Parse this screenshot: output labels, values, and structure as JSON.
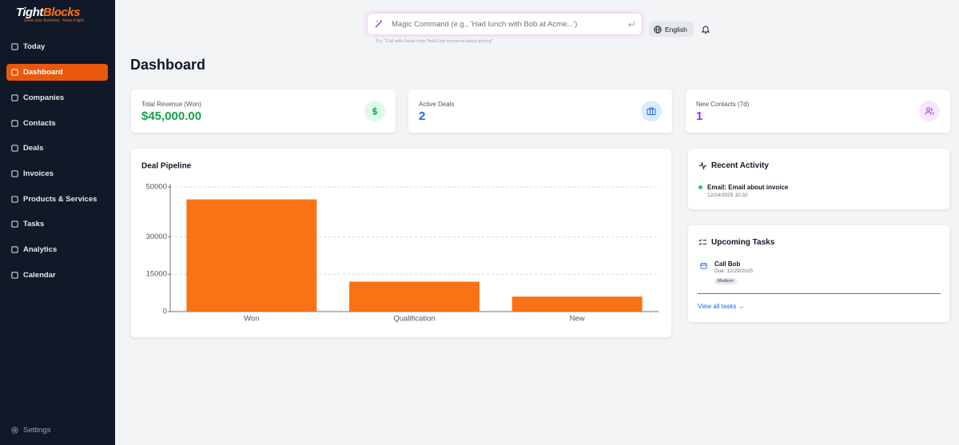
{
  "sidebar": {
    "logo_main": "Tight",
    "logo_accent": "Blocks",
    "tagline": "Grow your business . Keep it tight .",
    "nav": [
      "Today",
      "Dashboard",
      "Companies",
      "Contacts",
      "Deals",
      "Invoices",
      "Products & Services",
      "Tasks",
      "Analytics",
      "Calendar"
    ],
    "settings": "Settings"
  },
  "topbar": {
    "search_placeholder": "Magic Command (e.g., 'Had lunch with Bob at Acme...')",
    "hint": "Try: \"Call with Sarah from TechCorp tomorrow about pricing\"",
    "language": "English"
  },
  "page_title": "Dashboard",
  "stats": [
    {
      "label": "Total Revenue (Won)",
      "value": "$45,000.00"
    },
    {
      "label": "Active Deals",
      "value": "2"
    },
    {
      "label": "New Contacts (7d)",
      "value": "1"
    }
  ],
  "chart_data": {
    "type": "bar",
    "title": "Deal Pipeline",
    "categories": [
      "Won",
      "Qualification",
      "New"
    ],
    "values": [
      45000,
      12000,
      6000
    ],
    "color": "#f97316",
    "ylim": [
      0,
      50000
    ],
    "yticks": [
      0,
      15000,
      30000,
      50000
    ],
    "grid": true
  },
  "recent_activity": {
    "title": "Recent Activity",
    "items": [
      {
        "title": "Email: Email about invoice",
        "time": "12/24/2025 10:32"
      }
    ]
  },
  "upcoming_tasks": {
    "title": "Upcoming Tasks",
    "items": [
      {
        "title": "Call Bob",
        "due": "Due: 12/29/2025",
        "priority": "Medium"
      }
    ],
    "link": "View all tasks →"
  }
}
